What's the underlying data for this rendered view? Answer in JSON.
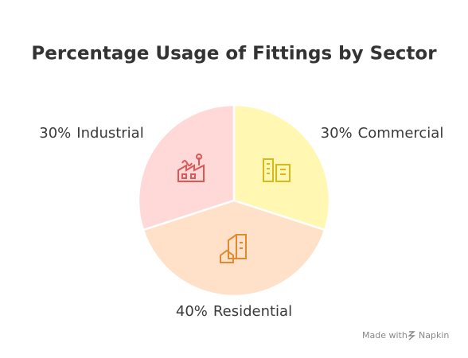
{
  "chart_data": {
    "type": "pie",
    "title": "Percentage Usage of Fittings by Sector",
    "categories": [
      "Commercial",
      "Residential",
      "Industrial"
    ],
    "values": [
      30,
      40,
      30
    ],
    "value_labels": [
      "30%",
      "40%",
      "30%"
    ],
    "colors": [
      "#fff7b2",
      "#ffe0c8",
      "#ffd8d8"
    ],
    "credit": "Made with",
    "brand": "Napkin"
  }
}
